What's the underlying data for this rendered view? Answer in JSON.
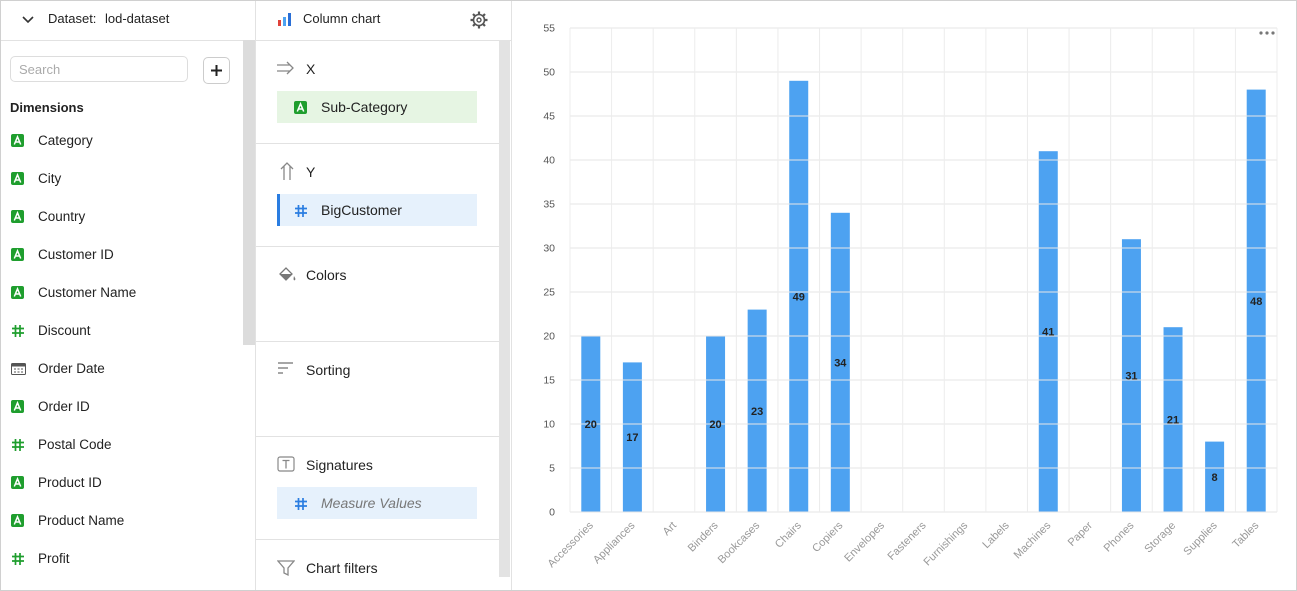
{
  "dataset_panel": {
    "label": "Dataset:",
    "dataset": "lod-dataset",
    "search_placeholder": "Search",
    "section": "Dimensions",
    "fields": [
      "Category",
      "City",
      "Country",
      "Customer ID",
      "Customer Name",
      "Discount",
      "Order Date",
      "Order ID",
      "Postal Code",
      "Product ID",
      "Product Name",
      "Profit"
    ]
  },
  "config_panel": {
    "chart_type": "Column chart",
    "x": {
      "label": "X",
      "field": "Sub-Category"
    },
    "y": {
      "label": "Y",
      "field": "BigCustomer"
    },
    "colors": {
      "label": "Colors"
    },
    "sorting": {
      "label": "Sorting"
    },
    "signatures": {
      "label": "Signatures",
      "field": "Measure Values"
    },
    "filters": {
      "label": "Chart filters"
    }
  },
  "chart_data": {
    "type": "bar",
    "categories": [
      "Accessories",
      "Appliances",
      "Art",
      "Binders",
      "Bookcases",
      "Chairs",
      "Copiers",
      "Envelopes",
      "Fasteners",
      "Furnishings",
      "Labels",
      "Machines",
      "Paper",
      "Phones",
      "Storage",
      "Supplies",
      "Tables"
    ],
    "values": [
      20,
      17,
      null,
      20,
      23,
      49,
      34,
      null,
      null,
      null,
      null,
      41,
      null,
      31,
      21,
      8,
      48
    ],
    "color": "#4da2f1",
    "ylim": [
      0,
      55
    ],
    "yticks": [
      0,
      5,
      10,
      15,
      20,
      25,
      30,
      35,
      40,
      45,
      50,
      55
    ],
    "grid": true,
    "data_labels": true
  }
}
